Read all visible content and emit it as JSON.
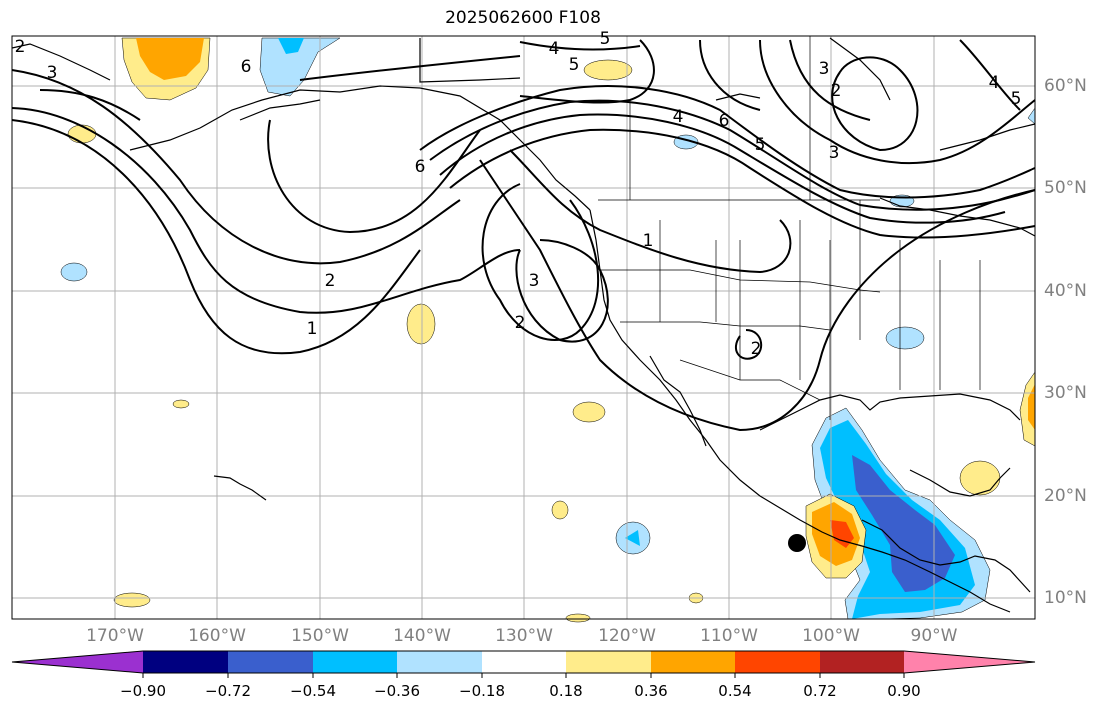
{
  "title": "2025062600 F108",
  "lon_labels": [
    "170°W",
    "160°W",
    "150°W",
    "140°W",
    "130°W",
    "120°W",
    "110°W",
    "100°W",
    "90°W"
  ],
  "lat_labels": [
    "60°N",
    "50°N",
    "40°N",
    "30°N",
    "20°N",
    "10°N"
  ],
  "colorbar": {
    "ticks": [
      "−0.90",
      "−0.72",
      "−0.54",
      "−0.36",
      "−0.18",
      "0.18",
      "0.36",
      "0.54",
      "0.72",
      "0.90"
    ],
    "colors": [
      "#9b30d0",
      "#000080",
      "#3a5fcd",
      "#00bfff",
      "#b0e2ff",
      "#ffffff",
      "#ffec8b",
      "#ffa500",
      "#ff4500",
      "#b22222",
      "#ff82ab"
    ]
  },
  "contour_labels": [
    "2",
    "3",
    "6",
    "5",
    "4",
    "5",
    "3",
    "2",
    "4",
    "5",
    "6",
    "4",
    "6",
    "5",
    "1",
    "2",
    "3",
    "3",
    "2",
    "1",
    "2"
  ],
  "shading_colors": {
    "light_yellow": "#ffec8b",
    "orange": "#ffa500",
    "red": "#ff4500",
    "light_blue": "#b0e2ff",
    "sky_blue": "#00bfff",
    "royal_blue": "#3a5fcd"
  }
}
